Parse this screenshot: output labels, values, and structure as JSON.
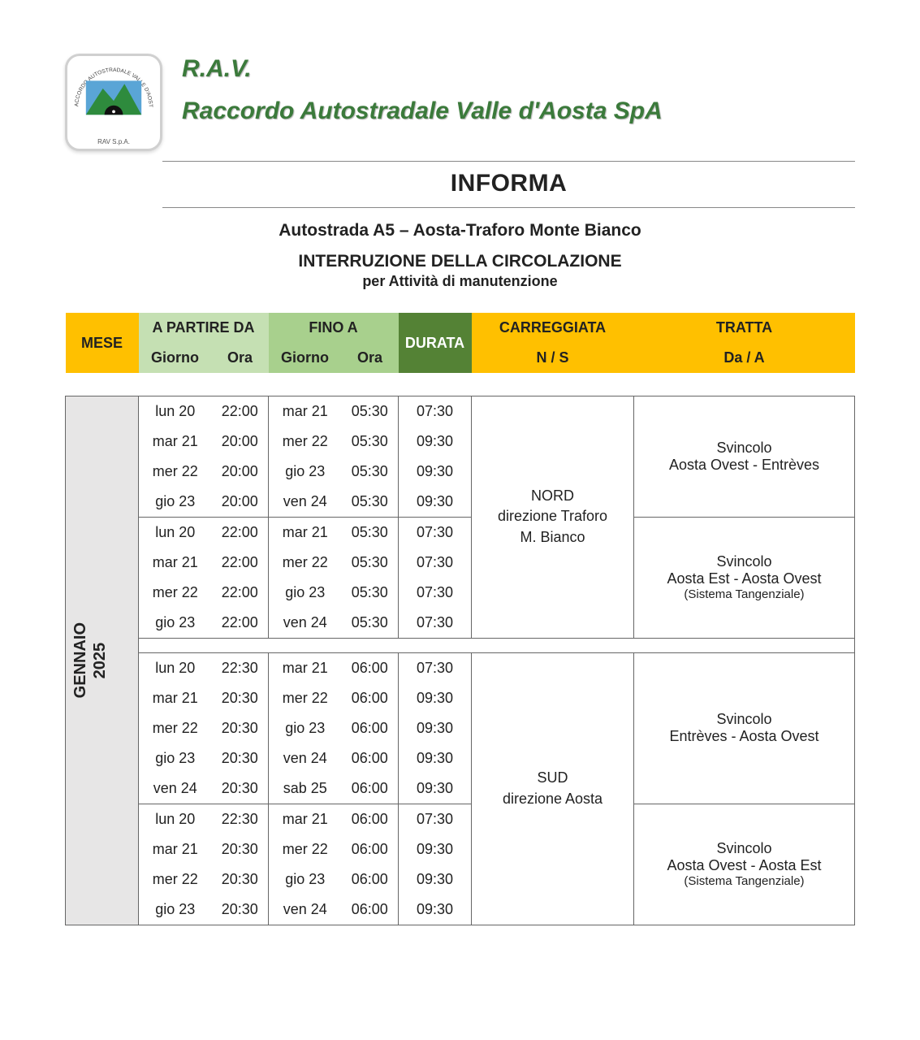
{
  "header": {
    "acronym": "R.A.V.",
    "company": "Raccordo Autostradale Valle d'Aosta SpA",
    "informa": "INFORMA",
    "road": "Autostrada A5 – Aosta-Traforo Monte Bianco",
    "interruption": "INTERRUZIONE DELLA CIRCOLAZIONE",
    "reason": "per Attività di manutenzione",
    "logo_arc_text": "RACCORDO AUTOSTRADALE VALLE D'AOSTA",
    "logo_caption": "RAV S.p.A."
  },
  "columns": {
    "mese": "MESE",
    "from": "A PARTIRE DA",
    "to": "FINO A",
    "giorno": "Giorno",
    "ora": "Ora",
    "durata": "DURATA",
    "carreggiata": "CARREGGIATA",
    "carreggiata_sub": "N / S",
    "tratta": "TRATTA",
    "tratta_sub": "Da / A"
  },
  "colors": {
    "accent_green": "#3b7a3b",
    "header_yellow": "#ffc000",
    "header_lightgreen": "#c5e0b3",
    "header_midgreen": "#a8d08d",
    "header_darkgreen": "#548235",
    "mese_bg": "#e7e6e6",
    "border": "#666666"
  },
  "month": {
    "name": "GENNAIO",
    "year": "2025"
  },
  "direction_nord": {
    "title": "NORD",
    "l1": "direzione Traforo",
    "l2": "M. Bianco"
  },
  "direction_sud": {
    "title": "SUD",
    "l1": "direzione Aosta"
  },
  "tratta_1": {
    "t": "Svincolo",
    "l": "Aosta Ovest - Entrèves"
  },
  "tratta_2": {
    "t": "Svincolo",
    "l": "Aosta Est - Aosta Ovest",
    "n": "(Sistema Tangenziale)"
  },
  "tratta_3": {
    "t": "Svincolo",
    "l": "Entrèves - Aosta Ovest"
  },
  "tratta_4": {
    "t": "Svincolo",
    "l": "Aosta Ovest - Aosta Est",
    "n": "(Sistema Tangenziale)"
  },
  "rows_n1": [
    {
      "fd": "lun 20",
      "ft": "22:00",
      "td": "mar 21",
      "tt": "05:30",
      "d": "07:30"
    },
    {
      "fd": "mar 21",
      "ft": "20:00",
      "td": "mer 22",
      "tt": "05:30",
      "d": "09:30"
    },
    {
      "fd": "mer 22",
      "ft": "20:00",
      "td": "gio 23",
      "tt": "05:30",
      "d": "09:30"
    },
    {
      "fd": "gio 23",
      "ft": "20:00",
      "td": "ven 24",
      "tt": "05:30",
      "d": "09:30"
    }
  ],
  "rows_n2": [
    {
      "fd": "lun 20",
      "ft": "22:00",
      "td": "mar 21",
      "tt": "05:30",
      "d": "07:30"
    },
    {
      "fd": "mar 21",
      "ft": "22:00",
      "td": "mer 22",
      "tt": "05:30",
      "d": "07:30"
    },
    {
      "fd": "mer 22",
      "ft": "22:00",
      "td": "gio 23",
      "tt": "05:30",
      "d": "07:30"
    },
    {
      "fd": "gio 23",
      "ft": "22:00",
      "td": "ven 24",
      "tt": "05:30",
      "d": "07:30"
    }
  ],
  "rows_s1": [
    {
      "fd": "lun 20",
      "ft": "22:30",
      "td": "mar 21",
      "tt": "06:00",
      "d": "07:30"
    },
    {
      "fd": "mar 21",
      "ft": "20:30",
      "td": "mer 22",
      "tt": "06:00",
      "d": "09:30"
    },
    {
      "fd": "mer 22",
      "ft": "20:30",
      "td": "gio 23",
      "tt": "06:00",
      "d": "09:30"
    },
    {
      "fd": "gio 23",
      "ft": "20:30",
      "td": "ven 24",
      "tt": "06:00",
      "d": "09:30"
    },
    {
      "fd": "ven 24",
      "ft": "20:30",
      "td": "sab 25",
      "tt": "06:00",
      "d": "09:30"
    }
  ],
  "rows_s2": [
    {
      "fd": "lun 20",
      "ft": "22:30",
      "td": "mar 21",
      "tt": "06:00",
      "d": "07:30"
    },
    {
      "fd": "mar 21",
      "ft": "20:30",
      "td": "mer 22",
      "tt": "06:00",
      "d": "09:30"
    },
    {
      "fd": "mer 22",
      "ft": "20:30",
      "td": "gio 23",
      "tt": "06:00",
      "d": "09:30"
    },
    {
      "fd": "gio 23",
      "ft": "20:30",
      "td": "ven 24",
      "tt": "06:00",
      "d": "09:30"
    }
  ]
}
